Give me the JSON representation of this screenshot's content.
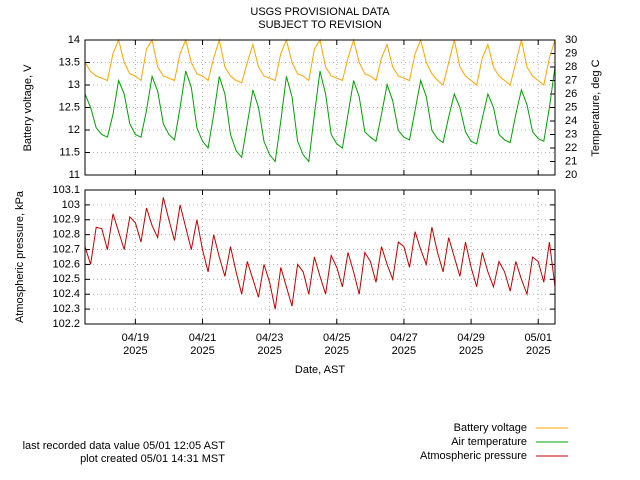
{
  "title": "USGS PROVISIONAL DATA",
  "subtitle": "SUBJECT TO REVISION",
  "notes": [
    "last recorded data value 05/01 12:05 AST",
    "plot created 05/01 14:31 MST"
  ],
  "chart_data": [
    {
      "type": "line",
      "ylabel": "Battery voltage, V",
      "y2label": "Temperature, deg C",
      "ylim": [
        11,
        14
      ],
      "yticks": [
        11,
        11.5,
        12,
        12.5,
        13,
        13.5,
        14
      ],
      "y2lim": [
        20,
        30
      ],
      "y2ticks": [
        20,
        21,
        22,
        23,
        24,
        25,
        26,
        27,
        28,
        29,
        30
      ],
      "grid": true,
      "legend": "bottom right",
      "series": [
        {
          "name": "Battery voltage",
          "color": "#ffa500",
          "values": [
            13.5,
            13.3,
            13.2,
            13.15,
            13.1,
            13.7,
            14.0,
            13.5,
            13.25,
            13.2,
            13.1,
            13.8,
            14.0,
            13.4,
            13.2,
            13.15,
            13.1,
            13.7,
            14.0,
            13.5,
            13.25,
            13.2,
            13.1,
            13.6,
            14.0,
            13.4,
            13.2,
            13.1,
            13.05,
            13.5,
            13.9,
            13.4,
            13.2,
            13.15,
            13.1,
            13.7,
            14.0,
            13.5,
            13.25,
            13.2,
            13.1,
            13.8,
            14.0,
            13.4,
            13.2,
            13.15,
            13.1,
            13.6,
            14.0,
            13.5,
            13.25,
            13.2,
            13.1,
            13.6,
            13.9,
            13.4,
            13.2,
            13.15,
            13.1,
            13.7,
            14.0,
            13.5,
            13.25,
            13.1,
            13.0,
            13.5,
            14.0,
            13.4,
            13.2,
            13.1,
            13.0,
            13.6,
            13.9,
            13.4,
            13.2,
            13.1,
            13.0,
            13.5,
            14.0,
            13.4,
            13.2,
            13.1,
            13.0,
            13.6,
            14.0
          ]
        },
        {
          "name": "Air temperature",
          "color": "#00a000",
          "axis": "y2",
          "values": [
            26.0,
            25.0,
            23.5,
            23.0,
            22.8,
            24.5,
            27.0,
            26.0,
            23.8,
            23.0,
            22.8,
            24.8,
            27.3,
            26.2,
            23.8,
            23.0,
            22.6,
            25.0,
            27.7,
            26.5,
            23.5,
            22.5,
            22.0,
            24.5,
            27.3,
            26.0,
            23.0,
            21.8,
            21.3,
            23.8,
            26.3,
            25.0,
            22.5,
            21.5,
            21.0,
            24.0,
            27.3,
            25.8,
            22.5,
            21.5,
            21.0,
            24.5,
            27.7,
            26.0,
            23.0,
            22.3,
            22.0,
            24.5,
            27.0,
            25.8,
            23.2,
            22.8,
            22.5,
            24.5,
            26.7,
            25.5,
            23.3,
            22.8,
            22.6,
            24.8,
            27.0,
            25.8,
            23.3,
            22.7,
            22.4,
            24.3,
            26.0,
            25.0,
            23.2,
            22.5,
            22.3,
            24.2,
            26.0,
            25.0,
            23.0,
            22.6,
            22.4,
            24.5,
            26.3,
            25.2,
            23.2,
            22.7,
            22.5,
            25.0,
            28.0
          ]
        }
      ]
    },
    {
      "type": "line",
      "ylabel": "Atmospheric pressure, kPa",
      "xlabel": "Date, AST",
      "ylim": [
        102.2,
        103.1
      ],
      "yticks": [
        102.2,
        102.3,
        102.4,
        102.5,
        102.6,
        102.7,
        102.8,
        102.9,
        103,
        103.1
      ],
      "grid": true,
      "categories": [
        null,
        null,
        null,
        null,
        null,
        null,
        null,
        null,
        null,
        "04/19 2025",
        null,
        null,
        null,
        null,
        null,
        null,
        null,
        null,
        null,
        null,
        null,
        "04/21 2025",
        null,
        null,
        null,
        null,
        null,
        null,
        null,
        null,
        null,
        null,
        null,
        "04/23 2025",
        null,
        null,
        null,
        null,
        null,
        null,
        null,
        null,
        null,
        null,
        null,
        "04/25 2025",
        null,
        null,
        null,
        null,
        null,
        null,
        null,
        null,
        null,
        null,
        null,
        "04/27 2025",
        null,
        null,
        null,
        null,
        null,
        null,
        null,
        null,
        null,
        null,
        null,
        "04/29 2025",
        null,
        null,
        null,
        null,
        null,
        null,
        null,
        null,
        null,
        null,
        null,
        "05/01 2025",
        null,
        null,
        null
      ],
      "series": [
        {
          "name": "Atmospheric pressure",
          "color": "#c00000",
          "values": [
            102.72,
            102.6,
            102.85,
            102.84,
            102.7,
            102.94,
            102.82,
            102.7,
            102.92,
            102.88,
            102.75,
            102.98,
            102.86,
            102.78,
            103.05,
            102.9,
            102.76,
            103.0,
            102.85,
            102.7,
            102.9,
            102.7,
            102.55,
            102.8,
            102.65,
            102.52,
            102.72,
            102.55,
            102.4,
            102.62,
            102.5,
            102.38,
            102.6,
            102.48,
            102.3,
            102.58,
            102.45,
            102.32,
            102.6,
            102.55,
            102.4,
            102.65,
            102.52,
            102.4,
            102.66,
            102.58,
            102.45,
            102.68,
            102.55,
            102.4,
            102.68,
            102.62,
            102.48,
            102.72,
            102.6,
            102.5,
            102.75,
            102.72,
            102.58,
            102.82,
            102.7,
            102.6,
            102.85,
            102.68,
            102.55,
            102.78,
            102.65,
            102.52,
            102.75,
            102.58,
            102.45,
            102.68,
            102.55,
            102.45,
            102.62,
            102.55,
            102.42,
            102.62,
            102.5,
            102.4,
            102.65,
            102.62,
            102.48,
            102.75,
            102.45
          ]
        }
      ]
    }
  ]
}
